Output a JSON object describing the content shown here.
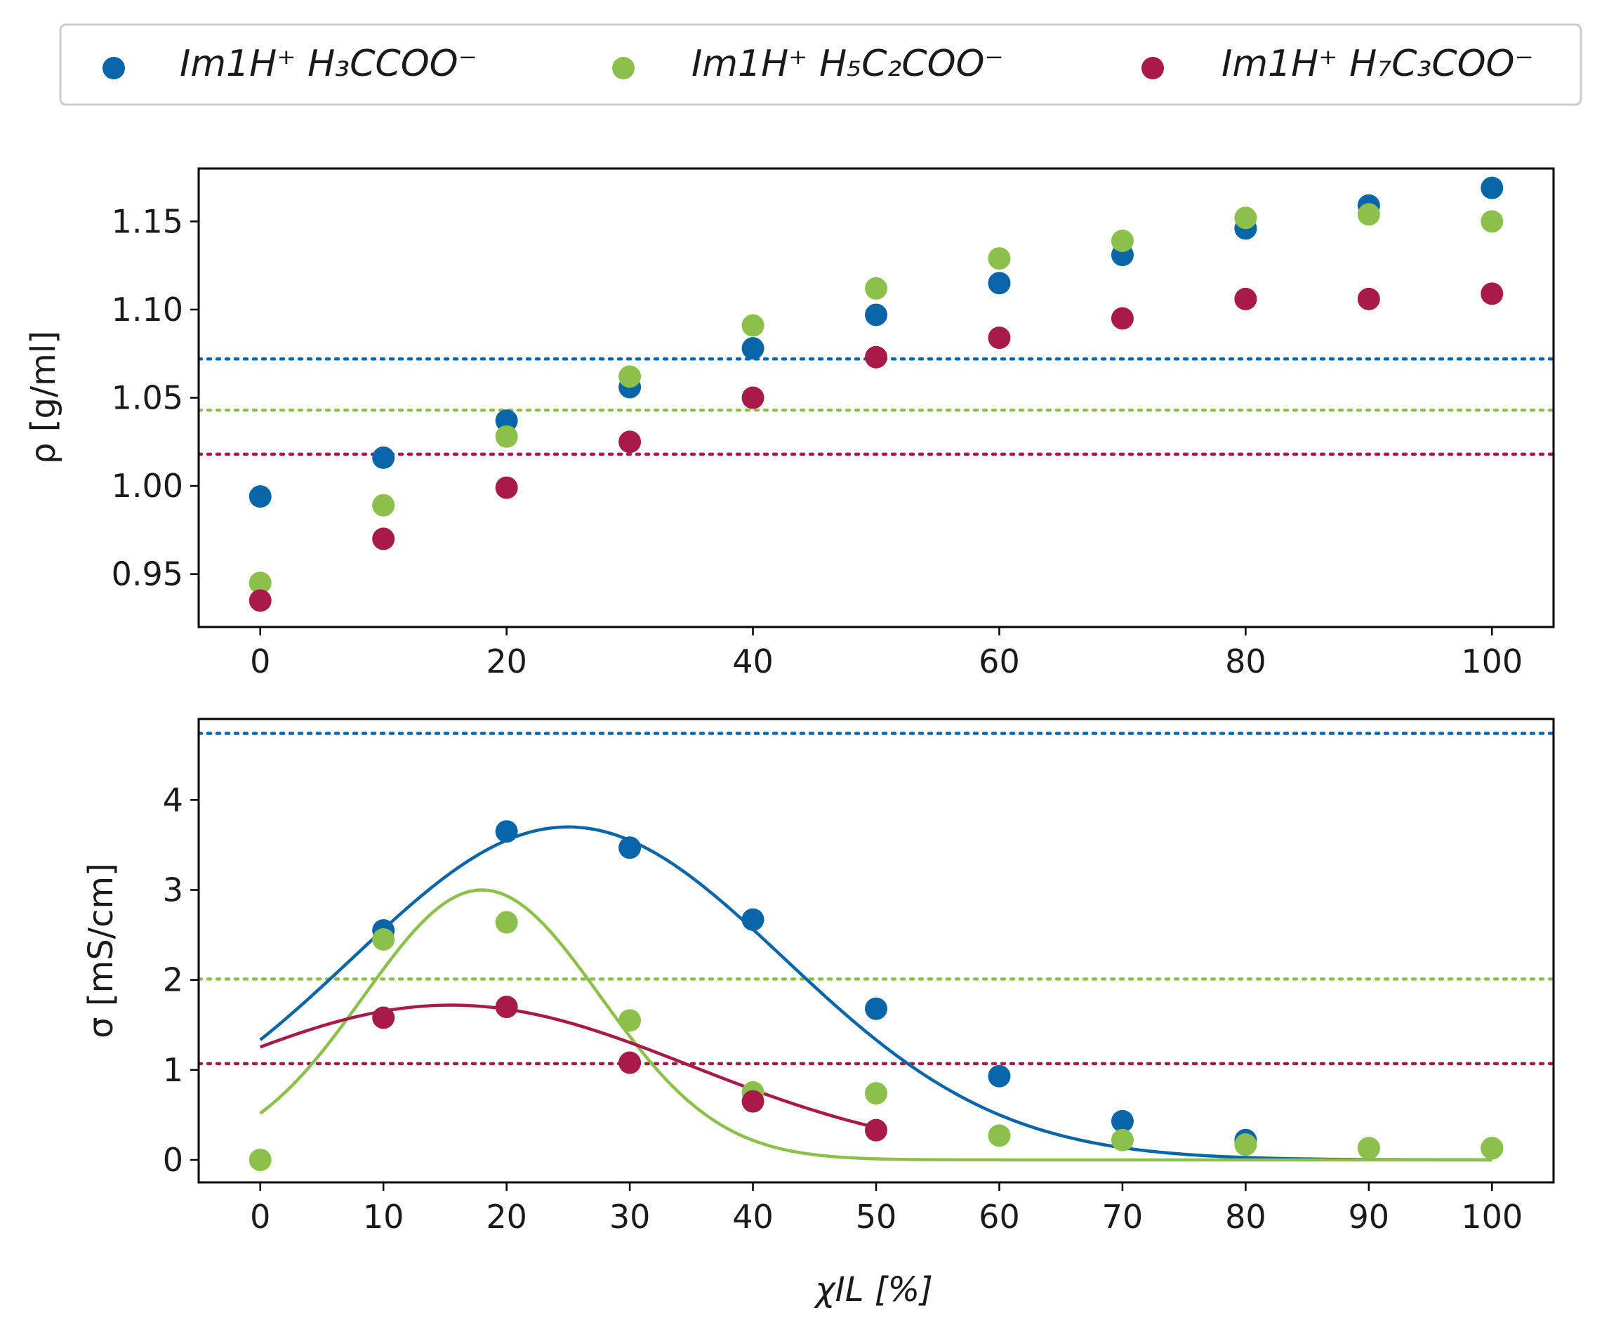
{
  "colors": {
    "blue": "#0865a8",
    "green": "#8cc04a",
    "crimson": "#a81a4a"
  },
  "legend": {
    "entries": [
      {
        "label": "Im1H⁺ H₃CCOO⁻",
        "color": "#0865a8"
      },
      {
        "label": "Im1H⁺ H₅C₂COO⁻",
        "color": "#8cc04a"
      },
      {
        "label": "Im1H⁺ H₇C₃COO⁻",
        "color": "#a81a4a"
      }
    ]
  },
  "chart_data": [
    {
      "type": "scatter",
      "panel": "density",
      "title": "",
      "xlabel": "",
      "ylabel": "ρ [g/ml]",
      "xlim": [
        -5,
        105
      ],
      "ylim": [
        0.92,
        1.18
      ],
      "xticks": [
        0,
        20,
        40,
        60,
        80,
        100
      ],
      "xtick_labels": [
        "0",
        "20",
        "40",
        "60",
        "80",
        "100"
      ],
      "yticks": [
        0.95,
        1.0,
        1.05,
        1.1,
        1.15
      ],
      "ytick_labels": [
        "0.95",
        "1.00",
        "1.05",
        "1.10",
        "1.15"
      ],
      "x": [
        0,
        10,
        20,
        30,
        40,
        50,
        60,
        70,
        80,
        90,
        100
      ],
      "series": [
        {
          "name": "Im1H⁺ H₃CCOO⁻",
          "color": "#0865a8",
          "values": [
            0.994,
            1.016,
            1.037,
            1.056,
            1.078,
            1.097,
            1.115,
            1.131,
            1.146,
            1.159,
            1.169
          ]
        },
        {
          "name": "Im1H⁺ H₅C₂COO⁻",
          "color": "#8cc04a",
          "values": [
            0.945,
            0.989,
            1.028,
            1.062,
            1.091,
            1.112,
            1.129,
            1.139,
            1.152,
            1.154,
            1.15
          ]
        },
        {
          "name": "Im1H⁺ H₇C₃COO⁻",
          "color": "#a81a4a",
          "values": [
            0.935,
            0.97,
            0.999,
            1.025,
            1.05,
            1.073,
            1.084,
            1.095,
            1.106,
            1.106,
            1.109
          ]
        }
      ],
      "reference_lines": [
        {
          "y": 1.072,
          "color": "#0865a8",
          "style": "dotted"
        },
        {
          "y": 1.043,
          "color": "#8cc04a",
          "style": "dotted"
        },
        {
          "y": 1.018,
          "color": "#a81a4a",
          "style": "dotted"
        }
      ]
    },
    {
      "type": "scatter",
      "panel": "conductivity",
      "title": "",
      "xlabel": "χIL [%]",
      "ylabel": "σ [mS/cm]",
      "xlim": [
        -5,
        105
      ],
      "ylim": [
        -0.25,
        4.9
      ],
      "xticks": [
        0,
        10,
        20,
        30,
        40,
        50,
        60,
        70,
        80,
        90,
        100
      ],
      "xtick_labels": [
        "0",
        "10",
        "20",
        "30",
        "40",
        "50",
        "60",
        "70",
        "80",
        "90",
        "100"
      ],
      "yticks": [
        0,
        1,
        2,
        3,
        4
      ],
      "ytick_labels": [
        "0",
        "1",
        "2",
        "3",
        "4"
      ],
      "x": [
        0,
        10,
        20,
        30,
        40,
        50,
        60,
        70,
        80,
        90,
        100
      ],
      "series": [
        {
          "name": "Im1H⁺ H₃CCOO⁻",
          "color": "#0865a8",
          "values": [
            null,
            2.55,
            3.65,
            3.47,
            2.67,
            1.68,
            0.93,
            0.43,
            0.22,
            0.13,
            0.13
          ]
        },
        {
          "name": "Im1H⁺ H₅C₂COO⁻",
          "color": "#8cc04a",
          "values": [
            0.0,
            2.45,
            2.64,
            1.55,
            0.75,
            0.74,
            0.27,
            0.22,
            0.17,
            0.13,
            0.13
          ]
        },
        {
          "name": "Im1H⁺ H₇C₃COO⁻",
          "color": "#a81a4a",
          "values": [
            null,
            1.58,
            1.7,
            1.08,
            0.65,
            0.33,
            null,
            null,
            null,
            null,
            null
          ]
        }
      ],
      "fits": [
        {
          "series": "Im1H⁺ H₃CCOO⁻",
          "color": "#0865a8",
          "model": "gaussian",
          "amplitude": 3.7,
          "center": 25,
          "sigma": 17.5,
          "x_range": [
            0,
            100
          ]
        },
        {
          "series": "Im1H⁺ H₅C₂COO⁻",
          "color": "#8cc04a",
          "model": "gaussian",
          "amplitude": 3.0,
          "center": 18,
          "sigma": 9.6,
          "x_range": [
            0,
            100
          ]
        },
        {
          "series": "Im1H⁺ H₇C₃COO⁻",
          "color": "#a81a4a",
          "model": "gaussian",
          "amplitude": 1.72,
          "center": 15.5,
          "sigma": 19.5,
          "x_range": [
            0,
            50
          ]
        }
      ],
      "reference_lines": [
        {
          "y": 4.74,
          "color": "#0865a8",
          "style": "dotted"
        },
        {
          "y": 2.01,
          "color": "#8cc04a",
          "style": "dotted"
        },
        {
          "y": 1.07,
          "color": "#a81a4a",
          "style": "dotted"
        }
      ]
    }
  ]
}
